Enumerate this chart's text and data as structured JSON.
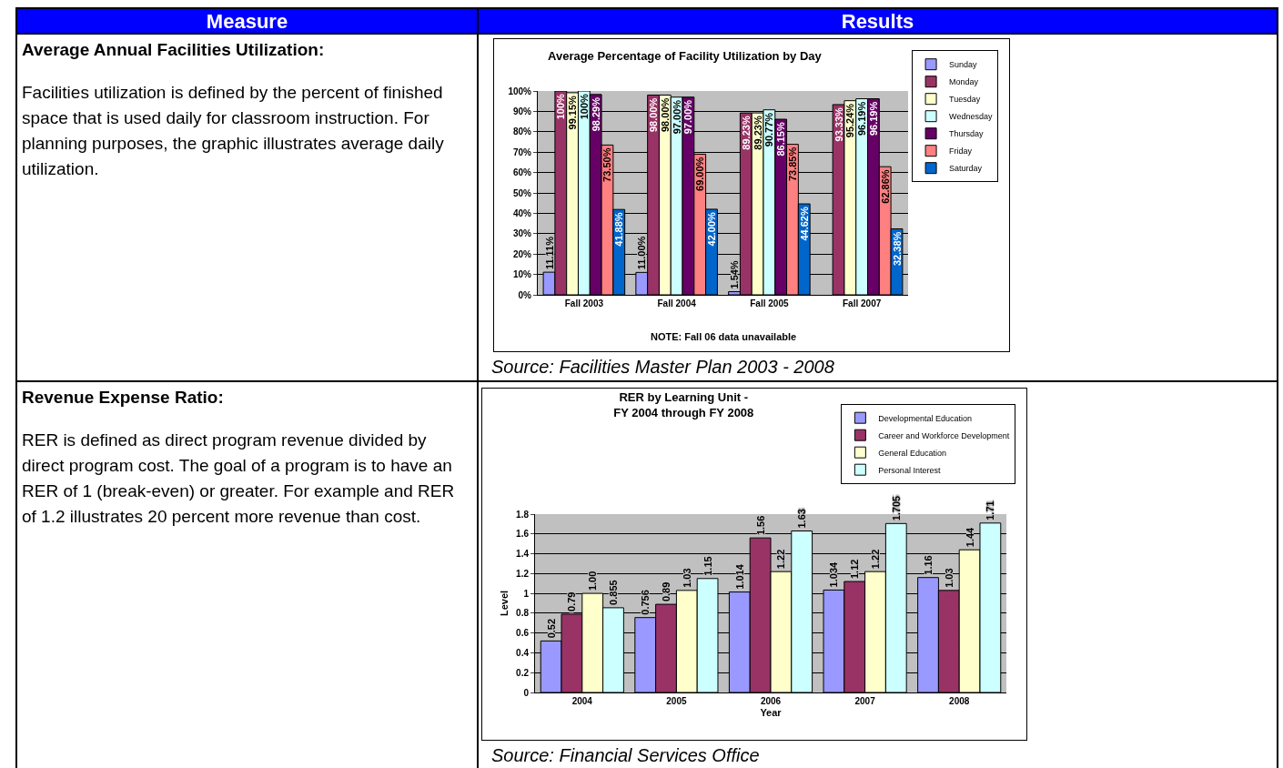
{
  "chart_data": [
    {
      "type": "other",
      "annotations": [
        "Measure",
        "Results"
      ]
    },
    {
      "type": "other",
      "title": "Average Annual Facilities Utilization:",
      "annotations": [
        "Facilities utilization is defined by the percent of finished space that is used daily for classroom instruction.  For planning purposes, the graphic illustrates average daily utilization."
      ]
    },
    {
      "type": "bar",
      "title": "Average Percentage of Facility Utilization by Day",
      "categories": [
        "Fall 2003",
        "Fall 2004",
        "Fall 2005",
        "Fall 2007"
      ],
      "series": [
        {
          "name": "Sunday",
          "color": "#9999ff",
          "values": [
            11.11,
            11.0,
            1.54,
            null
          ],
          "value_labels": [
            "11.11%",
            "11.00%",
            "1.54%",
            null
          ]
        },
        {
          "name": "Monday",
          "color": "#993366",
          "values": [
            100,
            98.0,
            89.23,
            93.33
          ],
          "value_labels": [
            "100%",
            "98.00%",
            "89.23%",
            "93.33%"
          ]
        },
        {
          "name": "Tuesday",
          "color": "#ffffcc",
          "values": [
            99.15,
            98.0,
            89.23,
            95.24
          ],
          "value_labels": [
            "99.15%",
            "98.00%",
            "89.23%",
            "95.24%"
          ]
        },
        {
          "name": "Wednesday",
          "color": "#ccffff",
          "values": [
            100,
            97.0,
            90.77,
            96.19
          ],
          "value_labels": [
            "100%",
            "97.00%",
            "90.77%",
            "96.19%"
          ]
        },
        {
          "name": "Thursday",
          "color": "#660066",
          "values": [
            98.29,
            97.0,
            86.15,
            96.19
          ],
          "value_labels": [
            "98.29%",
            "97.00%",
            "86.15%",
            "96.19%"
          ]
        },
        {
          "name": "Friday",
          "color": "#ff8080",
          "values": [
            73.5,
            69.0,
            73.85,
            62.86
          ],
          "value_labels": [
            "73.50%",
            "69.00%",
            "73.85%",
            "62.86%"
          ]
        },
        {
          "name": "Saturday",
          "color": "#0066cc",
          "values": [
            41.88,
            42.0,
            44.62,
            32.38
          ],
          "value_labels": [
            "41.88%",
            "42.00%",
            "44.62%",
            "32.38%"
          ]
        }
      ],
      "ylim": [
        0,
        100
      ],
      "yticks": [
        {
          "value": 0,
          "label": "0%"
        },
        {
          "value": 10,
          "label": "10%"
        },
        {
          "value": 20,
          "label": "20%"
        },
        {
          "value": 30,
          "label": "30%"
        },
        {
          "value": 40,
          "label": "40%"
        },
        {
          "value": 50,
          "label": "50%"
        },
        {
          "value": 60,
          "label": "60%"
        },
        {
          "value": 70,
          "label": "70%"
        },
        {
          "value": 80,
          "label": "80%"
        },
        {
          "value": 90,
          "label": "90%"
        },
        {
          "value": 100,
          "label": "100%"
        }
      ],
      "grid": "y",
      "legend": "top right",
      "annotations": [
        "NOTE: Fall 06 data unavailable",
        "Source:  Facilities Master Plan 2003 - 2008"
      ]
    },
    {
      "type": "other",
      "title": "Revenue Expense Ratio:",
      "annotations": [
        "RER is defined as direct program revenue divided by direct program cost.  The goal of a program is to have an RER of 1 (break-even) or greater.  For example and RER of 1.2 illustrates 20 percent more revenue than cost."
      ]
    },
    {
      "type": "bar",
      "title": "RER by Learning Unit -\nFY 2004 through FY 2008",
      "xlabel": "Year",
      "ylabel": "Level",
      "categories": [
        "2004",
        "2005",
        "2006",
        "2007",
        "2008"
      ],
      "series": [
        {
          "name": "Developmental Education",
          "color": "#9999ff",
          "values": [
            0.52,
            0.756,
            1.014,
            1.034,
            1.16
          ],
          "value_labels": [
            "0.52",
            "0.756",
            "1.014",
            "1.034",
            "1.16"
          ]
        },
        {
          "name": "Career and Workforce Development",
          "color": "#993366",
          "values": [
            0.79,
            0.89,
            1.56,
            1.12,
            1.03
          ],
          "value_labels": [
            "0.79",
            "0.89",
            "1.56",
            "1.12",
            "1.03"
          ]
        },
        {
          "name": "General Education",
          "color": "#ffffcc",
          "values": [
            1.0,
            1.03,
            1.22,
            1.22,
            1.44
          ],
          "value_labels": [
            "1.00",
            "1.03",
            "1.22",
            "1.22",
            "1.44"
          ]
        },
        {
          "name": "Personal Interest",
          "color": "#ccffff",
          "values": [
            0.855,
            1.15,
            1.63,
            1.705,
            1.71
          ],
          "value_labels": [
            "0.855",
            "1.15",
            "1.63",
            "1.705",
            "1.71"
          ]
        }
      ],
      "ylim": [
        0,
        1.8
      ],
      "yticks": [
        0,
        0.2,
        0.4,
        0.6,
        0.8,
        1,
        1.2,
        1.4,
        1.6,
        1.8
      ],
      "grid": "y",
      "legend": "top right",
      "annotations": [
        "Source:  Financial Services Office"
      ]
    }
  ]
}
